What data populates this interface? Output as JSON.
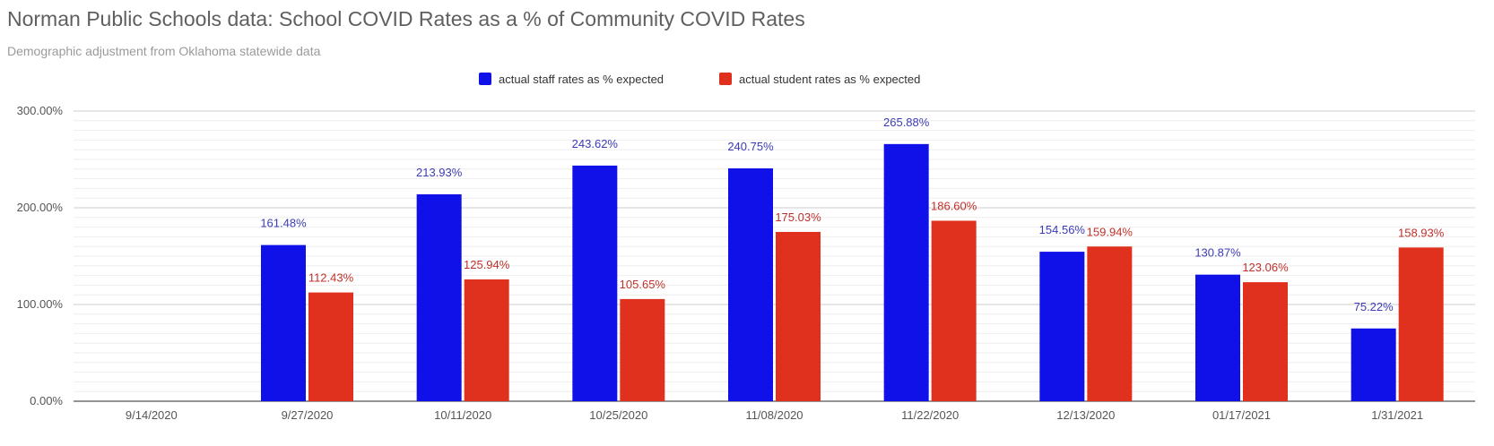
{
  "chart_data": {
    "type": "bar",
    "title": "Norman Public Schools data: School COVID Rates as a % of Community COVID Rates",
    "subtitle": "Demographic adjustment from Oklahoma statewide data",
    "xlabel": "",
    "ylabel": "",
    "categories": [
      "9/14/2020",
      "9/27/2020",
      "10/11/2020",
      "10/25/2020",
      "11/08/2020",
      "11/22/2020",
      "12/13/2020",
      "01/17/2021",
      "1/31/2021"
    ],
    "series": [
      {
        "name": "actual staff rates as % expected",
        "color": "#1010e8",
        "label_color": "#3b3bb5",
        "values": [
          null,
          161.48,
          213.93,
          243.62,
          240.75,
          265.88,
          154.56,
          130.87,
          75.22
        ],
        "labels": [
          "",
          "161.48%",
          "213.93%",
          "243.62%",
          "240.75%",
          "265.88%",
          "154.56%",
          "130.87%",
          "75.22%"
        ]
      },
      {
        "name": "actual student rates as % expected",
        "color": "#e0301e",
        "label_color": "#c0302a",
        "values": [
          null,
          112.43,
          125.94,
          105.65,
          175.03,
          186.6,
          159.94,
          123.06,
          158.93
        ],
        "labels": [
          "",
          "112.43%",
          "125.94%",
          "105.65%",
          "175.03%",
          "186.60%",
          "159.94%",
          "123.06%",
          "158.93%"
        ]
      }
    ],
    "ylim": [
      0,
      300
    ],
    "yticks": [
      0,
      100,
      200,
      300
    ],
    "ytick_labels": [
      "0.00%",
      "100.00%",
      "200.00%",
      "300.00%"
    ],
    "grid": true,
    "legend_position": "top-center"
  }
}
